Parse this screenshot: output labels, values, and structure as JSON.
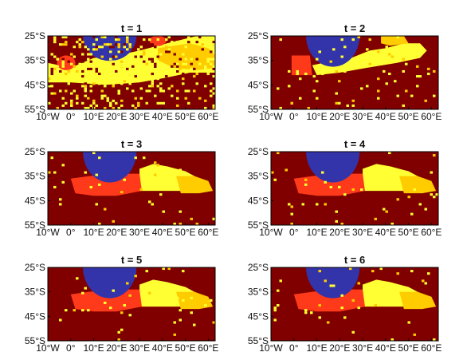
{
  "figure": {
    "panel_titles": [
      "t = 1",
      "t = 2",
      "t = 3",
      "t = 4",
      "t = 5",
      "t = 6"
    ],
    "x_tick_labels": [
      "10°W",
      "0°",
      "10°E",
      "20°E",
      "30°E",
      "40°E",
      "50°E",
      "60°E"
    ],
    "y_tick_labels": [
      "25°S",
      "35°S",
      "45°S",
      "55°S"
    ]
  },
  "colors": {
    "background": "#800000",
    "blue": "#3333aa",
    "red": "#ff3a1a",
    "yellow": "#ffff33",
    "orange": "#ffcc00",
    "frame": "#000000"
  },
  "chart_data": {
    "type": "heatmap",
    "x_ticks_deg": [
      -10,
      0,
      10,
      20,
      30,
      40,
      50,
      60
    ],
    "y_ticks_deg": [
      -25,
      -35,
      -45,
      -55
    ],
    "xlim": [
      -10,
      63
    ],
    "ylim": [
      -55,
      -25
    ],
    "panels": [
      {
        "title": "t = 1",
        "noise_level": "high"
      },
      {
        "title": "t = 2",
        "noise_level": "medium"
      },
      {
        "title": "t = 3",
        "noise_level": "low"
      },
      {
        "title": "t = 4",
        "noise_level": "low"
      },
      {
        "title": "t = 5",
        "noise_level": "low"
      },
      {
        "title": "t = 6",
        "noise_level": "low"
      }
    ]
  }
}
